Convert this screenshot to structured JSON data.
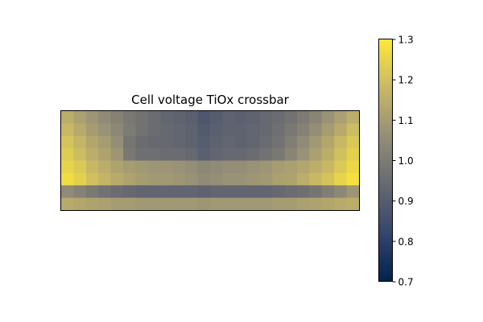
{
  "chart_data": {
    "type": "heatmap",
    "title": "Cell voltage TiOx crossbar",
    "xlabel": "",
    "ylabel": "",
    "x_ticks_visible": false,
    "y_ticks_visible": false,
    "colormap": "cividis",
    "colormap_stops": [
      "#00224e",
      "#35456c",
      "#666970",
      "#948e77",
      "#c8b866",
      "#fee838"
    ],
    "colorbar": {
      "vmin": 0.7,
      "vmax": 1.3,
      "ticks": [
        "0.7",
        "0.8",
        "0.9",
        "1.0",
        "1.1",
        "1.2",
        "1.3"
      ],
      "placement": "right"
    },
    "grid": false,
    "rows": 8,
    "cols": 24,
    "values": [
      [
        1.15,
        1.11,
        1.08,
        1.05,
        1.02,
        0.99,
        0.97,
        0.95,
        0.93,
        0.92,
        0.91,
        0.88,
        0.9,
        0.92,
        0.91,
        0.92,
        0.94,
        0.95,
        0.97,
        1.0,
        1.03,
        1.07,
        1.11,
        1.15
      ],
      [
        1.18,
        1.14,
        1.1,
        1.07,
        1.04,
        1.0,
        0.97,
        0.95,
        0.94,
        0.93,
        0.92,
        0.89,
        0.91,
        0.92,
        0.92,
        0.93,
        0.94,
        0.96,
        0.99,
        1.02,
        1.06,
        1.1,
        1.14,
        1.19
      ],
      [
        1.21,
        1.17,
        1.13,
        1.1,
        1.06,
        0.98,
        0.95,
        0.94,
        0.94,
        0.93,
        0.92,
        0.9,
        0.92,
        0.93,
        0.92,
        0.93,
        0.95,
        0.97,
        1.01,
        1.05,
        1.09,
        1.13,
        1.18,
        1.22
      ],
      [
        1.23,
        1.19,
        1.15,
        1.12,
        1.08,
        0.99,
        0.96,
        0.96,
        0.95,
        0.95,
        0.94,
        0.91,
        0.93,
        0.94,
        0.94,
        0.95,
        0.97,
        0.99,
        1.03,
        1.07,
        1.11,
        1.15,
        1.2,
        1.24
      ],
      [
        1.25,
        1.22,
        1.18,
        1.15,
        1.12,
        1.1,
        1.09,
        1.08,
        1.08,
        1.07,
        1.06,
        1.04,
        1.05,
        1.06,
        1.06,
        1.07,
        1.08,
        1.1,
        1.11,
        1.13,
        1.15,
        1.18,
        1.22,
        1.26
      ],
      [
        1.27,
        1.24,
        1.2,
        1.17,
        1.14,
        1.12,
        1.1,
        1.09,
        1.09,
        1.08,
        1.07,
        1.05,
        1.06,
        1.07,
        1.07,
        1.08,
        1.09,
        1.11,
        1.12,
        1.15,
        1.18,
        1.21,
        1.25,
        1.28
      ],
      [
        1.05,
        1.02,
        0.99,
        0.97,
        0.95,
        0.94,
        0.93,
        0.93,
        0.93,
        0.93,
        0.93,
        0.92,
        0.93,
        0.93,
        0.93,
        0.93,
        0.93,
        0.94,
        0.95,
        0.96,
        0.98,
        1.01,
        1.04,
        1.08
      ],
      [
        1.14,
        1.13,
        1.12,
        1.11,
        1.1,
        1.1,
        1.09,
        1.09,
        1.09,
        1.09,
        1.09,
        1.08,
        1.09,
        1.09,
        1.09,
        1.09,
        1.09,
        1.1,
        1.1,
        1.11,
        1.12,
        1.13,
        1.14,
        1.15
      ]
    ]
  }
}
